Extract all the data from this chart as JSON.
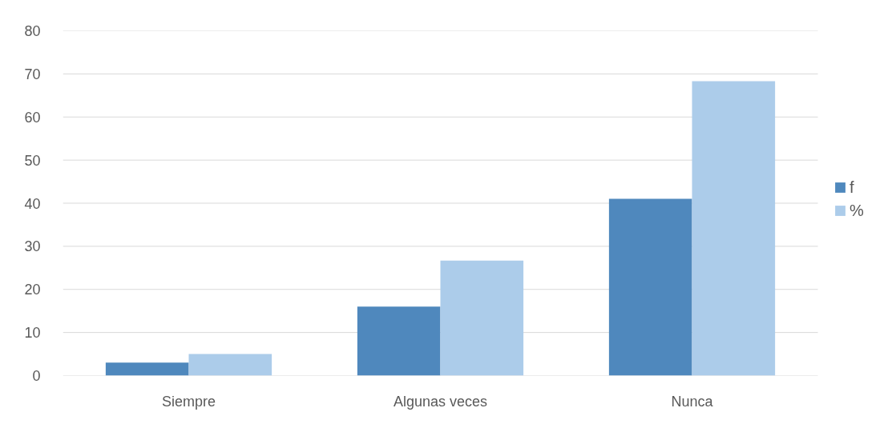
{
  "chart_data": {
    "type": "bar",
    "categories": [
      "Siempre",
      "Algunas veces",
      "Nunca"
    ],
    "series": [
      {
        "name": "f",
        "color": "#4f88bd",
        "values": [
          3,
          16,
          41
        ]
      },
      {
        "name": "%",
        "color": "#acccea",
        "values": [
          5,
          26.7,
          68.3
        ]
      }
    ],
    "ylim": [
      0,
      80
    ],
    "yticks": [
      0,
      10,
      20,
      30,
      40,
      50,
      60,
      70,
      80
    ],
    "grid": "y",
    "legend": "right"
  }
}
